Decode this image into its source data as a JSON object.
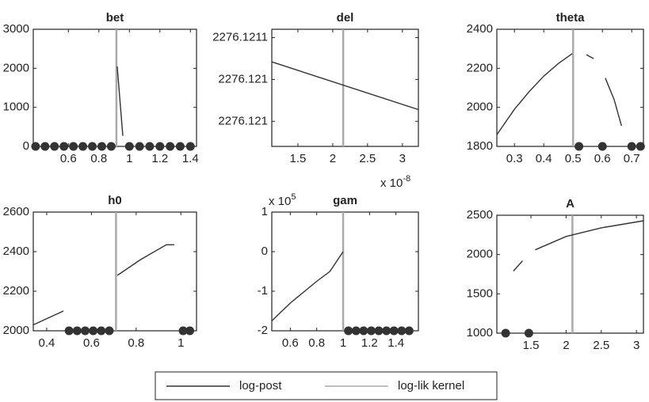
{
  "chart_data": [
    {
      "type": "line",
      "title": "bet",
      "xlim": [
        0.37,
        1.44
      ],
      "ylim": [
        0,
        3000
      ],
      "xticks": [
        0.6,
        0.8,
        1,
        1.2,
        1.4
      ],
      "yticks": [
        0,
        1000,
        2000,
        3000
      ],
      "series": [
        {
          "name": "log-post",
          "color": "#333333",
          "x": [
            0.92,
            0.957
          ],
          "values": [
            2050,
            270
          ]
        }
      ],
      "vline": 0.915,
      "markers": [
        0.385,
        0.447,
        0.509,
        0.571,
        0.633,
        0.695,
        0.757,
        0.819,
        0.881,
        1.0,
        1.067,
        1.133,
        1.2,
        1.267,
        1.333,
        1.4
      ]
    },
    {
      "type": "line",
      "title": "del",
      "xlim": [
        1.125,
        3.23
      ],
      "ylim": [
        2276.12097,
        2276.12111
      ],
      "xticks": [
        1.5,
        2,
        2.5,
        3
      ],
      "yticks": [
        {
          "value": 2276.1211,
          "label": "2276.1211"
        },
        {
          "value": 2276.12105,
          "label": "2276.121"
        },
        {
          "value": 2276.121,
          "label": "2276.121"
        }
      ],
      "x_exponent": {
        "base": "x 10",
        "exponent": "-8"
      },
      "series": [
        {
          "name": "log-post",
          "color": "#333333",
          "x": [
            1.125,
            3.23
          ],
          "values": [
            2276.121071,
            2276.121014
          ]
        }
      ],
      "vline": 2.15,
      "markers": []
    },
    {
      "type": "line",
      "title": "theta",
      "xlim": [
        0.24,
        0.74
      ],
      "ylim": [
        1800,
        2400
      ],
      "xticks": [
        0.3,
        0.4,
        0.5,
        0.6,
        0.7
      ],
      "yticks": [
        1800,
        2000,
        2200,
        2400
      ],
      "series": [
        {
          "name": "log-post",
          "color": "#333333",
          "x": [
            0.24,
            0.3,
            0.35,
            0.4,
            0.45,
            0.497,
            null,
            0.545,
            0.57,
            null,
            0.61,
            0.64,
            0.665
          ],
          "values": [
            1860,
            1990,
            2080,
            2160,
            2225,
            2275,
            null,
            2270,
            2250,
            null,
            2150,
            2040,
            1905
          ]
        }
      ],
      "vline": 0.5,
      "markers": [
        0.52,
        0.6,
        0.7,
        0.73
      ]
    },
    {
      "type": "line",
      "title": "h0",
      "xlim": [
        0.34,
        1.07
      ],
      "ylim": [
        2000,
        2600
      ],
      "xticks": [
        0.4,
        0.6,
        0.8,
        1
      ],
      "yticks": [
        2000,
        2200,
        2400,
        2600
      ],
      "series": [
        {
          "name": "log-post",
          "color": "#333333",
          "x": [
            0.34,
            0.475,
            null,
            0.716,
            0.82,
            0.935,
            0.97
          ],
          "values": [
            2030,
            2100,
            null,
            2280,
            2360,
            2435,
            2435
          ]
        }
      ],
      "vline": 0.71,
      "markers": [
        0.5,
        0.536,
        0.572,
        0.608,
        0.644,
        0.68,
        1.01,
        1.04
      ]
    },
    {
      "type": "line",
      "title": "gam",
      "xlim": [
        0.46,
        1.57
      ],
      "ylim": [
        -2,
        1
      ],
      "xticks": [
        0.6,
        0.8,
        1,
        1.2,
        1.4
      ],
      "yticks": [
        -2,
        -1,
        0,
        1
      ],
      "y_exponent": {
        "base": "x 10",
        "exponent": "5"
      },
      "series": [
        {
          "name": "log-post",
          "color": "#333333",
          "x": [
            0.46,
            0.6,
            0.8,
            0.9,
            1.0
          ],
          "values": [
            -1.75,
            -1.3,
            -0.75,
            -0.5,
            0
          ]
        }
      ],
      "vline": 1.0,
      "markers": [
        1.04,
        1.098,
        1.155,
        1.213,
        1.27,
        1.328,
        1.385,
        1.443,
        1.5
      ]
    },
    {
      "type": "line",
      "title": "A",
      "xlim": [
        1.015,
        3.1
      ],
      "ylim": [
        1000,
        2500
      ],
      "xticks": [
        1.5,
        2,
        2.5,
        3
      ],
      "yticks": [
        1000,
        1500,
        2000,
        2500
      ],
      "series": [
        {
          "name": "log-post",
          "color": "#333333",
          "x": [
            1.25,
            1.38,
            null,
            1.56,
            2.0,
            2.5,
            3.1
          ],
          "values": [
            1790,
            1920,
            null,
            2060,
            2230,
            2340,
            2430
          ]
        }
      ],
      "vline": 2.09,
      "markers": [
        1.14,
        1.47
      ]
    }
  ],
  "legend": {
    "entries": [
      {
        "name": "log-post",
        "color": "#333333"
      },
      {
        "name": "log-lik kernel",
        "color": "#aaaaaa"
      }
    ]
  }
}
